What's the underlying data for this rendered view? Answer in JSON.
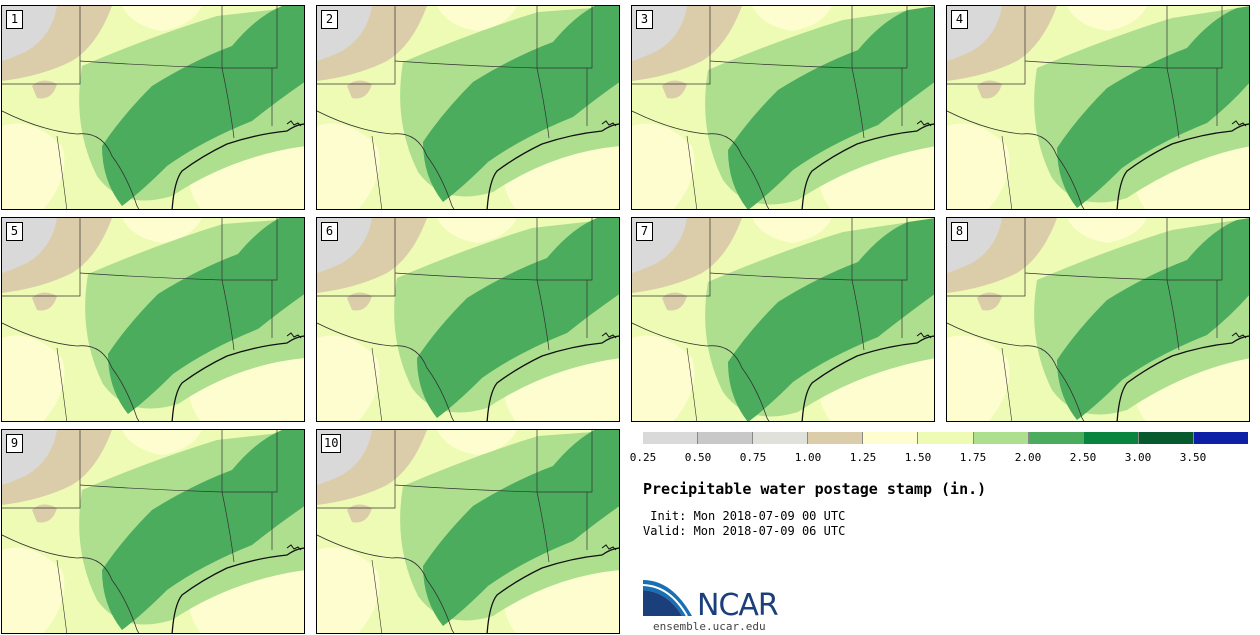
{
  "panels": [
    {
      "label": "1",
      "variant": 0
    },
    {
      "label": "2",
      "variant": 1
    },
    {
      "label": "3",
      "variant": 2
    },
    {
      "label": "4",
      "variant": 3
    },
    {
      "label": "5",
      "variant": 1
    },
    {
      "label": "6",
      "variant": 0
    },
    {
      "label": "7",
      "variant": 2
    },
    {
      "label": "8",
      "variant": 3
    },
    {
      "label": "9",
      "variant": 0
    },
    {
      "label": "10",
      "variant": 1
    }
  ],
  "legend": {
    "colors": [
      "#d9d9d9",
      "#c8c8c8",
      "#e1e1dc",
      "#dccdaa",
      "#fdfdd0",
      "#eefbb4",
      "#addf8e",
      "#4aac5c",
      "#08843f",
      "#075a2d",
      "#0c1fa6"
    ],
    "ticks": [
      "0.25",
      "0.50",
      "0.75",
      "1.00",
      "1.25",
      "1.50",
      "1.75",
      "2.00",
      "2.50",
      "3.00",
      "3.50"
    ]
  },
  "title": "Precipitable water postage stamp (in.)",
  "init": " Init: Mon 2018-07-09 00 UTC",
  "valid": "Valid: Mon 2018-07-09 06 UTC",
  "logo": {
    "word": "NCAR",
    "url": "ensemble.ucar.edu"
  }
}
